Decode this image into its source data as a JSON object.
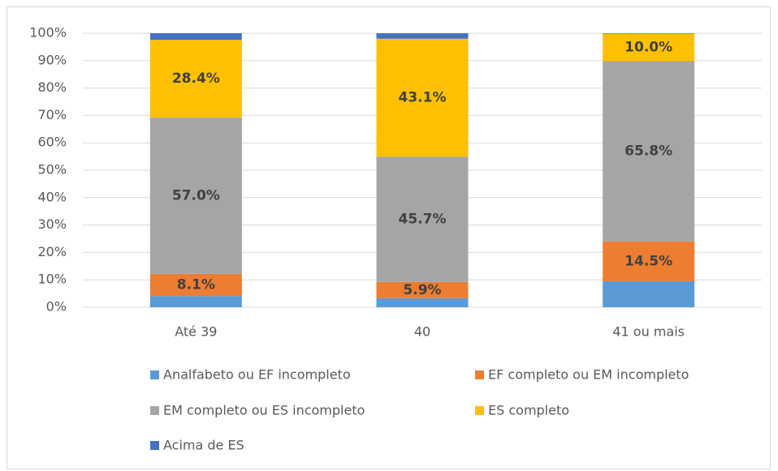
{
  "chart_data": {
    "type": "stacked_bar",
    "categories": [
      "Até 39",
      "40",
      "41 ou mais"
    ],
    "series": [
      {
        "name": "Analfabeto ou EF incompleto",
        "color": "#5b9bd5",
        "values": [
          4.1,
          3.3,
          9.5
        ]
      },
      {
        "name": "EF completo ou EM incompleto",
        "color": "#ed7d31",
        "values": [
          8.1,
          5.9,
          14.5
        ],
        "value_labels": [
          "8.1%",
          "5.9%",
          "14.5%"
        ]
      },
      {
        "name": "EM completo ou ES incompleto",
        "color": "#a5a5a5",
        "values": [
          57.0,
          45.7,
          65.8
        ],
        "value_labels": [
          "57.0%",
          "45.7%",
          "65.8%"
        ]
      },
      {
        "name": "ES completo",
        "color": "#ffc000",
        "values": [
          28.4,
          43.1,
          10.0
        ],
        "value_labels": [
          "28.4%",
          "43.1%",
          "10.0%"
        ]
      },
      {
        "name": "Acima de ES",
        "color": "#4472c4",
        "values": [
          2.4,
          2.0,
          0.2
        ]
      }
    ],
    "ylim": [
      0,
      100
    ],
    "yticks": [
      {
        "value": 0,
        "label": "0%"
      },
      {
        "value": 10,
        "label": "10%"
      },
      {
        "value": 20,
        "label": "20%"
      },
      {
        "value": 30,
        "label": "30%"
      },
      {
        "value": 40,
        "label": "40%"
      },
      {
        "value": 50,
        "label": "50%"
      },
      {
        "value": 60,
        "label": "60%"
      },
      {
        "value": 70,
        "label": "70%"
      },
      {
        "value": 80,
        "label": "80%"
      },
      {
        "value": 90,
        "label": "90%"
      },
      {
        "value": 100,
        "label": "100%"
      }
    ],
    "grid": true,
    "legend": "bottom"
  }
}
